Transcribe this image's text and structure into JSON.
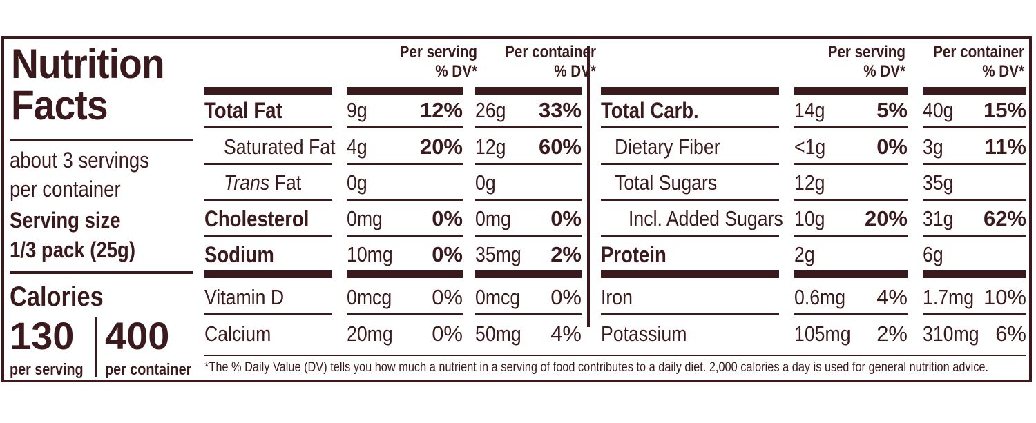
{
  "panel": {
    "title_line1": "Nutrition",
    "title_line2": "Facts",
    "servings_line1": "about 3 servings",
    "servings_line2": "per container",
    "serving_size_label": "Serving size",
    "serving_size_value": "1/3 pack (25g)",
    "calories_label": "Calories",
    "calories_per_serving": "130",
    "calories_per_container": "400",
    "per_serving_label": "per serving",
    "per_container_label": "per container"
  },
  "headers": {
    "per_serving": "Per serving",
    "per_container": "Per container",
    "dv": "% DV*"
  },
  "left_rows": [
    {
      "name": "Total Fat",
      "serv_amt": "9g",
      "serv_dv": "12%",
      "cont_amt": "26g",
      "cont_dv": "33%"
    },
    {
      "name": "Saturated Fat",
      "serv_amt": "4g",
      "serv_dv": "20%",
      "cont_amt": "12g",
      "cont_dv": "60%"
    },
    {
      "name_prefix": "Trans",
      "name": " Fat",
      "serv_amt": "0g",
      "serv_dv": "",
      "cont_amt": "0g",
      "cont_dv": ""
    },
    {
      "name": "Cholesterol",
      "serv_amt": "0mg",
      "serv_dv": "0%",
      "cont_amt": "0mg",
      "cont_dv": "0%"
    },
    {
      "name": "Sodium",
      "serv_amt": "10mg",
      "serv_dv": "0%",
      "cont_amt": "35mg",
      "cont_dv": "2%"
    },
    {
      "name": "Vitamin D",
      "serv_amt": "0mcg",
      "serv_dv": "0%",
      "cont_amt": "0mcg",
      "cont_dv": "0%"
    },
    {
      "name": "Calcium",
      "serv_amt": "20mg",
      "serv_dv": "0%",
      "cont_amt": "50mg",
      "cont_dv": "4%"
    }
  ],
  "right_rows": [
    {
      "name": "Total Carb.",
      "serv_amt": "14g",
      "serv_dv": "5%",
      "cont_amt": "40g",
      "cont_dv": "15%"
    },
    {
      "name": "Dietary Fiber",
      "serv_amt": "<1g",
      "serv_dv": "0%",
      "cont_amt": "3g",
      "cont_dv": "11%"
    },
    {
      "name": "Total Sugars",
      "serv_amt": "12g",
      "serv_dv": "",
      "cont_amt": "35g",
      "cont_dv": ""
    },
    {
      "name": "Incl. Added Sugars",
      "serv_amt": "10g",
      "serv_dv": "20%",
      "cont_amt": "31g",
      "cont_dv": "62%"
    },
    {
      "name": "Protein",
      "serv_amt": "2g",
      "serv_dv": "",
      "cont_amt": "6g",
      "cont_dv": ""
    },
    {
      "name": "Iron",
      "serv_amt": "0.6mg",
      "serv_dv": "4%",
      "cont_amt": "1.7mg",
      "cont_dv": "10%"
    },
    {
      "name": "Potassium",
      "serv_amt": "105mg",
      "serv_dv": "2%",
      "cont_amt": "310mg",
      "cont_dv": "6%"
    }
  ],
  "footnote": "*The % Daily Value (DV) tells you how much a nutrient in a serving of food contributes to a daily diet. 2,000 calories a day is used for general nutrition advice."
}
